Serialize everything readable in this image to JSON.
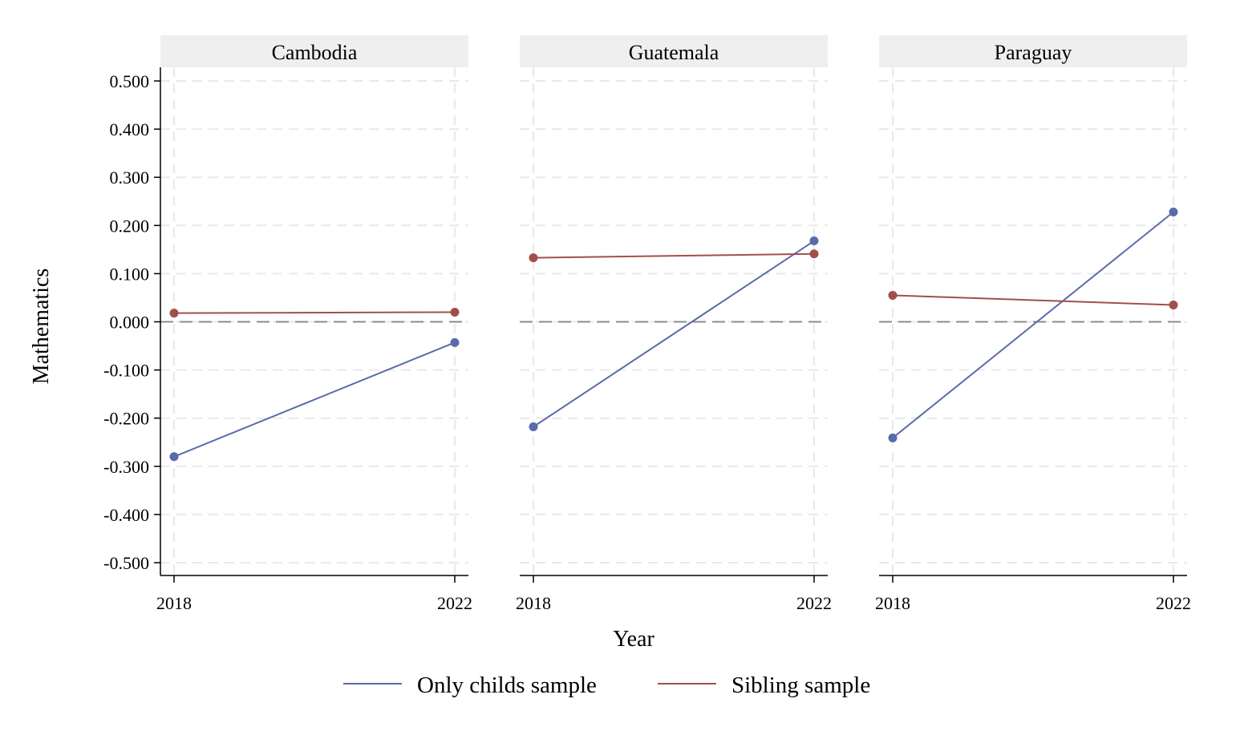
{
  "chart_data": {
    "type": "line",
    "ylabel": "Mathematics",
    "xlabel": "Year",
    "ylim": [
      -0.5,
      0.5
    ],
    "yticks": [
      "0.500",
      "0.400",
      "0.300",
      "0.200",
      "0.100",
      "0.000",
      "-0.100",
      "-0.200",
      "-0.300",
      "-0.400",
      "-0.500"
    ],
    "ytick_values": [
      0.5,
      0.4,
      0.3,
      0.2,
      0.1,
      0.0,
      -0.1,
      -0.2,
      -0.3,
      -0.4,
      -0.5
    ],
    "x": [
      "2018",
      "2022"
    ],
    "reference_line": 0.0,
    "grid": true,
    "legend": {
      "placement": "bottom",
      "items": [
        "Only childs sample",
        "Sibling sample"
      ]
    },
    "colors": {
      "only_child": "#5a6bab",
      "sibling": "#a24f4c",
      "reference": "#8c8c8c",
      "strip": "#efefef",
      "grid": "#e9e9e9"
    },
    "panels": [
      {
        "title": "Cambodia",
        "series": [
          {
            "name": "Only childs sample",
            "values": [
              -0.28,
              -0.043
            ]
          },
          {
            "name": "Sibling sample",
            "values": [
              0.018,
              0.02
            ]
          }
        ]
      },
      {
        "title": "Guatemala",
        "series": [
          {
            "name": "Only childs sample",
            "values": [
              -0.218,
              0.168
            ]
          },
          {
            "name": "Sibling sample",
            "values": [
              0.133,
              0.141
            ]
          }
        ]
      },
      {
        "title": "Paraguay",
        "series": [
          {
            "name": "Only childs sample",
            "values": [
              -0.241,
              0.228
            ]
          },
          {
            "name": "Sibling sample",
            "values": [
              0.055,
              0.035
            ]
          }
        ]
      }
    ]
  }
}
